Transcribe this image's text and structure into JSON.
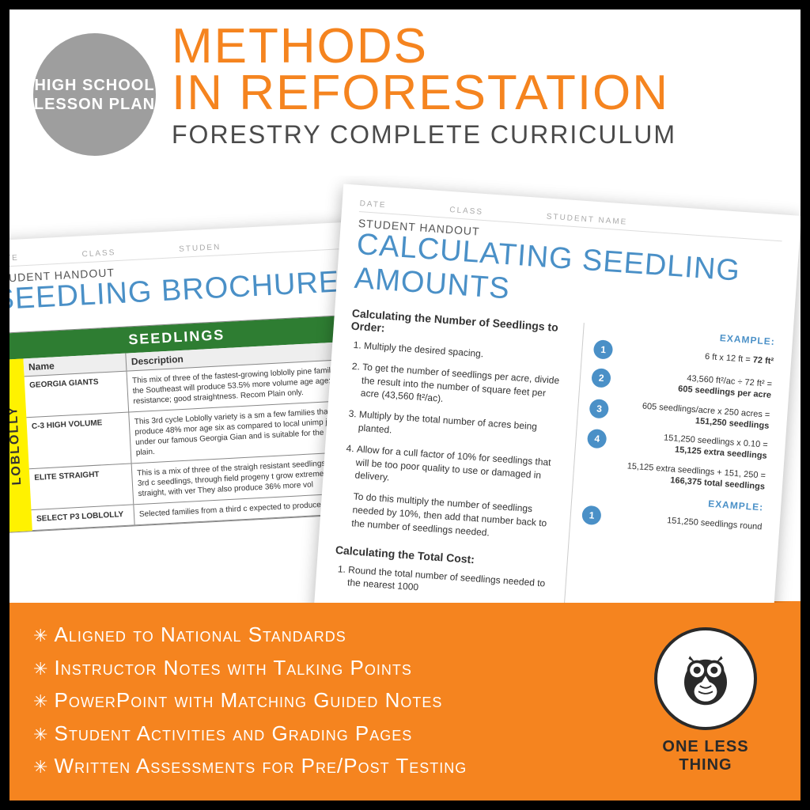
{
  "badge": {
    "line1": "HIGH SCHOOL",
    "line2": "LESSON PLAN"
  },
  "title": {
    "line1": "METHODS",
    "line2": "IN REFORESTATION",
    "subtitle": "FORESTRY COMPLETE CURRICULUM"
  },
  "colors": {
    "orange": "#f5841f",
    "blue": "#4a90c7",
    "badge_gray": "#9e9e9e",
    "green": "#2e7d32",
    "yellow": "#fff200",
    "dark": "#2a2a2a"
  },
  "page_left": {
    "header_fields": [
      "DATE",
      "CLASS",
      "STUDEN"
    ],
    "overline": "STUDENT HANDOUT",
    "title": "SEEDLING BROCHURE",
    "table_header": "SEEDLINGS",
    "tab_label": "LOBLOLLY",
    "columns": [
      "Name",
      "Description"
    ],
    "rows": [
      {
        "name": "GEORGIA GIANTS",
        "desc": "This mix of three of the fastest-growing loblolly pine families in the Southeast will produce 53.5% more volume age age; resistance; good straightness. Recom Plain only."
      },
      {
        "name": "C-3 HIGH VOLUME",
        "desc": "This 3rd cycle Loblolly variety is a sm a few families that produce 48% mor age six as compared to local unimp just under our famous Georgia Gian and is suitable for the coastal plain."
      },
      {
        "name": "ELITE STRAIGHT",
        "desc": "This is a mix of three of the straigh resistant seedlings from our 3rd c seedlings, through field progeny t grow extremely straight, with ver They also produce 36% more vol"
      },
      {
        "name": "SELECT P3 LOBLOLLY",
        "desc": "Selected families from a third c expected to produce more than"
      }
    ]
  },
  "page_right": {
    "header_fields": [
      "DATE",
      "CLASS",
      "STUDENT NAME"
    ],
    "overline": "STUDENT HANDOUT",
    "title": "CALCULATING SEEDLING AMOUNTS",
    "section1_heading": "Calculating the Number of Seedlings to Order:",
    "steps": [
      "Multiply the desired spacing.",
      "To get the number of seedlings per acre, divide the result into the number of square feet per acre (43,560 ft²/ac).",
      "Multiply by the total number of acres being planted.",
      "Allow for a cull factor of 10% for seedlings that will be too poor quality to use or damaged in delivery."
    ],
    "note": "To do this multiply the number of seedlings needed by 10%, then add that number back to the number of seedlings needed.",
    "section2_heading": "Calculating the Total Cost:",
    "step2_1": "Round the total number of seedlings needed to the nearest 1000",
    "example_label": "EXAMPLE:",
    "examples": [
      {
        "n": "1",
        "text": "6 ft x 12 ft = <b>72 ft²</b>"
      },
      {
        "n": "2",
        "text": "43,560 ft²/ac ÷ 72 ft² =<br><b>605 seedlings per acre</b>"
      },
      {
        "n": "3",
        "text": "605 seedlings/acre x 250 acres =<br><b>151,250 seedlings</b>"
      },
      {
        "n": "4",
        "text": "151,250 seedlings x 0.10 =<br><b>15,125 extra seedlings</b>"
      }
    ],
    "example_total": "15,125 extra seedlings + 151, 250 =<br><b>166,375 total seedlings</b>",
    "example2_label": "EXAMPLE:",
    "example2_1": "151,250 seedlings round"
  },
  "footer": {
    "bullets": [
      "Aligned to National Standards",
      "Instructor Notes with Talking Points",
      "PowerPoint with Matching Guided Notes",
      "Student Activities and Grading Pages",
      "Written Assessments for Pre/Post Testing"
    ],
    "brand": "ONE LESS THING"
  }
}
